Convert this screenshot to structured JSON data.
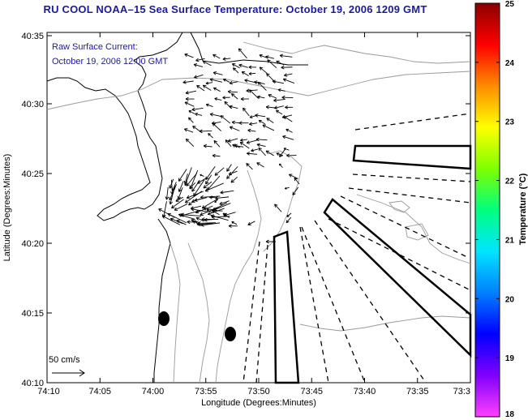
{
  "title": "RU COOL  NOAA–15  Sea Surface Temperature:  October 19, 2006 1209 GMT",
  "overlay": {
    "line1": "Raw Surface Current:",
    "line2": "October 19, 2006 12:00 GMT"
  },
  "scale": {
    "label": "50 cm/s"
  },
  "axes": {
    "xlabel": "Longitude (Degrees:Minutes)",
    "ylabel": "Latitude (Degrees:Minutes)",
    "xticks": [
      "74:10",
      "74:05",
      "74:00",
      "73:55",
      "73:50",
      "73:45",
      "73:40",
      "73:35",
      "73:3"
    ],
    "yticks": [
      "40:35",
      "40:30",
      "40:25",
      "40:20",
      "40:15",
      "40:10"
    ]
  },
  "colorbar": {
    "label": "Temperature (°C)",
    "ticks": [
      "25",
      "24",
      "23",
      "22",
      "21",
      "20",
      "19",
      "18"
    ],
    "colors": [
      "#8b0000",
      "#ff0000",
      "#ff8c00",
      "#ffff00",
      "#7fff00",
      "#00ff7f",
      "#00e5ff",
      "#0080ff",
      "#0000ff",
      "#8000ff",
      "#ff40ff"
    ]
  }
}
